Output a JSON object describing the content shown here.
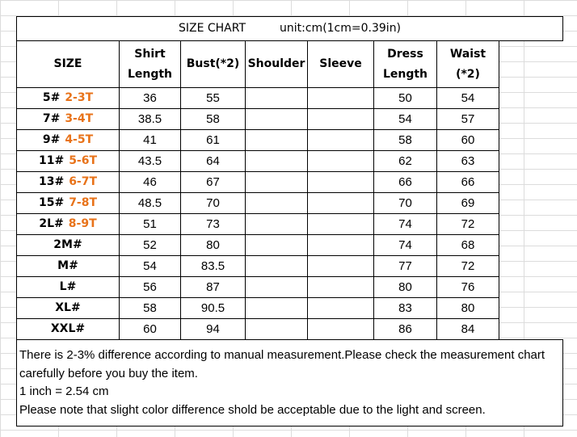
{
  "title": "SIZE CHART",
  "unit": "unit:cm(1cm=0.39in)",
  "headers": [
    "SIZE",
    "Shirt Length",
    "Bust(*2)",
    "Shoulder",
    "Sleeve",
    "Dress Length",
    "Waist (*2)"
  ],
  "rows": [
    {
      "size": "5#",
      "age": "2-3T",
      "shirt_length": "36",
      "bust": "55",
      "dress_length": "50",
      "waist": "54"
    },
    {
      "size": "7#",
      "age": "3-4T",
      "shirt_length": "38.5",
      "bust": "58",
      "dress_length": "54",
      "waist": "57"
    },
    {
      "size": "9#",
      "age": "4-5T",
      "shirt_length": "41",
      "bust": "61",
      "dress_length": "58",
      "waist": "60"
    },
    {
      "size": "11#",
      "age": "5-6T",
      "shirt_length": "43.5",
      "bust": "64",
      "dress_length": "62",
      "waist": "63"
    },
    {
      "size": "13#",
      "age": "6-7T",
      "shirt_length": "46",
      "bust": "67",
      "dress_length": "66",
      "waist": "66"
    },
    {
      "size": "15#",
      "age": "7-8T",
      "shirt_length": "48.5",
      "bust": "70",
      "dress_length": "70",
      "waist": "69"
    },
    {
      "size": "2L#",
      "age": "8-9T",
      "shirt_length": "51",
      "bust": "73",
      "dress_length": "74",
      "waist": "72"
    },
    {
      "size": "2M#",
      "shirt_length": "52",
      "bust": "80",
      "dress_length": "74",
      "waist": "68"
    },
    {
      "size": "M#",
      "shirt_length": "54",
      "bust": "83.5",
      "dress_length": "77",
      "waist": "72"
    },
    {
      "size": "L#",
      "shirt_length": "56",
      "bust": "87",
      "dress_length": "80",
      "waist": "76"
    },
    {
      "size": "XL#",
      "shirt_length": "58",
      "bust": "90.5",
      "dress_length": "83",
      "waist": "80"
    },
    {
      "size": "XXL#",
      "shirt_length": "60",
      "bust": "94",
      "dress_length": "86",
      "waist": "84"
    }
  ],
  "notes": [
    "There is 2-3% difference according to manual measurement.Please  check the measurement chart carefully before you buy the item.",
    "1 inch = 2.54 cm",
    "Please note that slight color difference shold be acceptable due to the light and screen."
  ]
}
